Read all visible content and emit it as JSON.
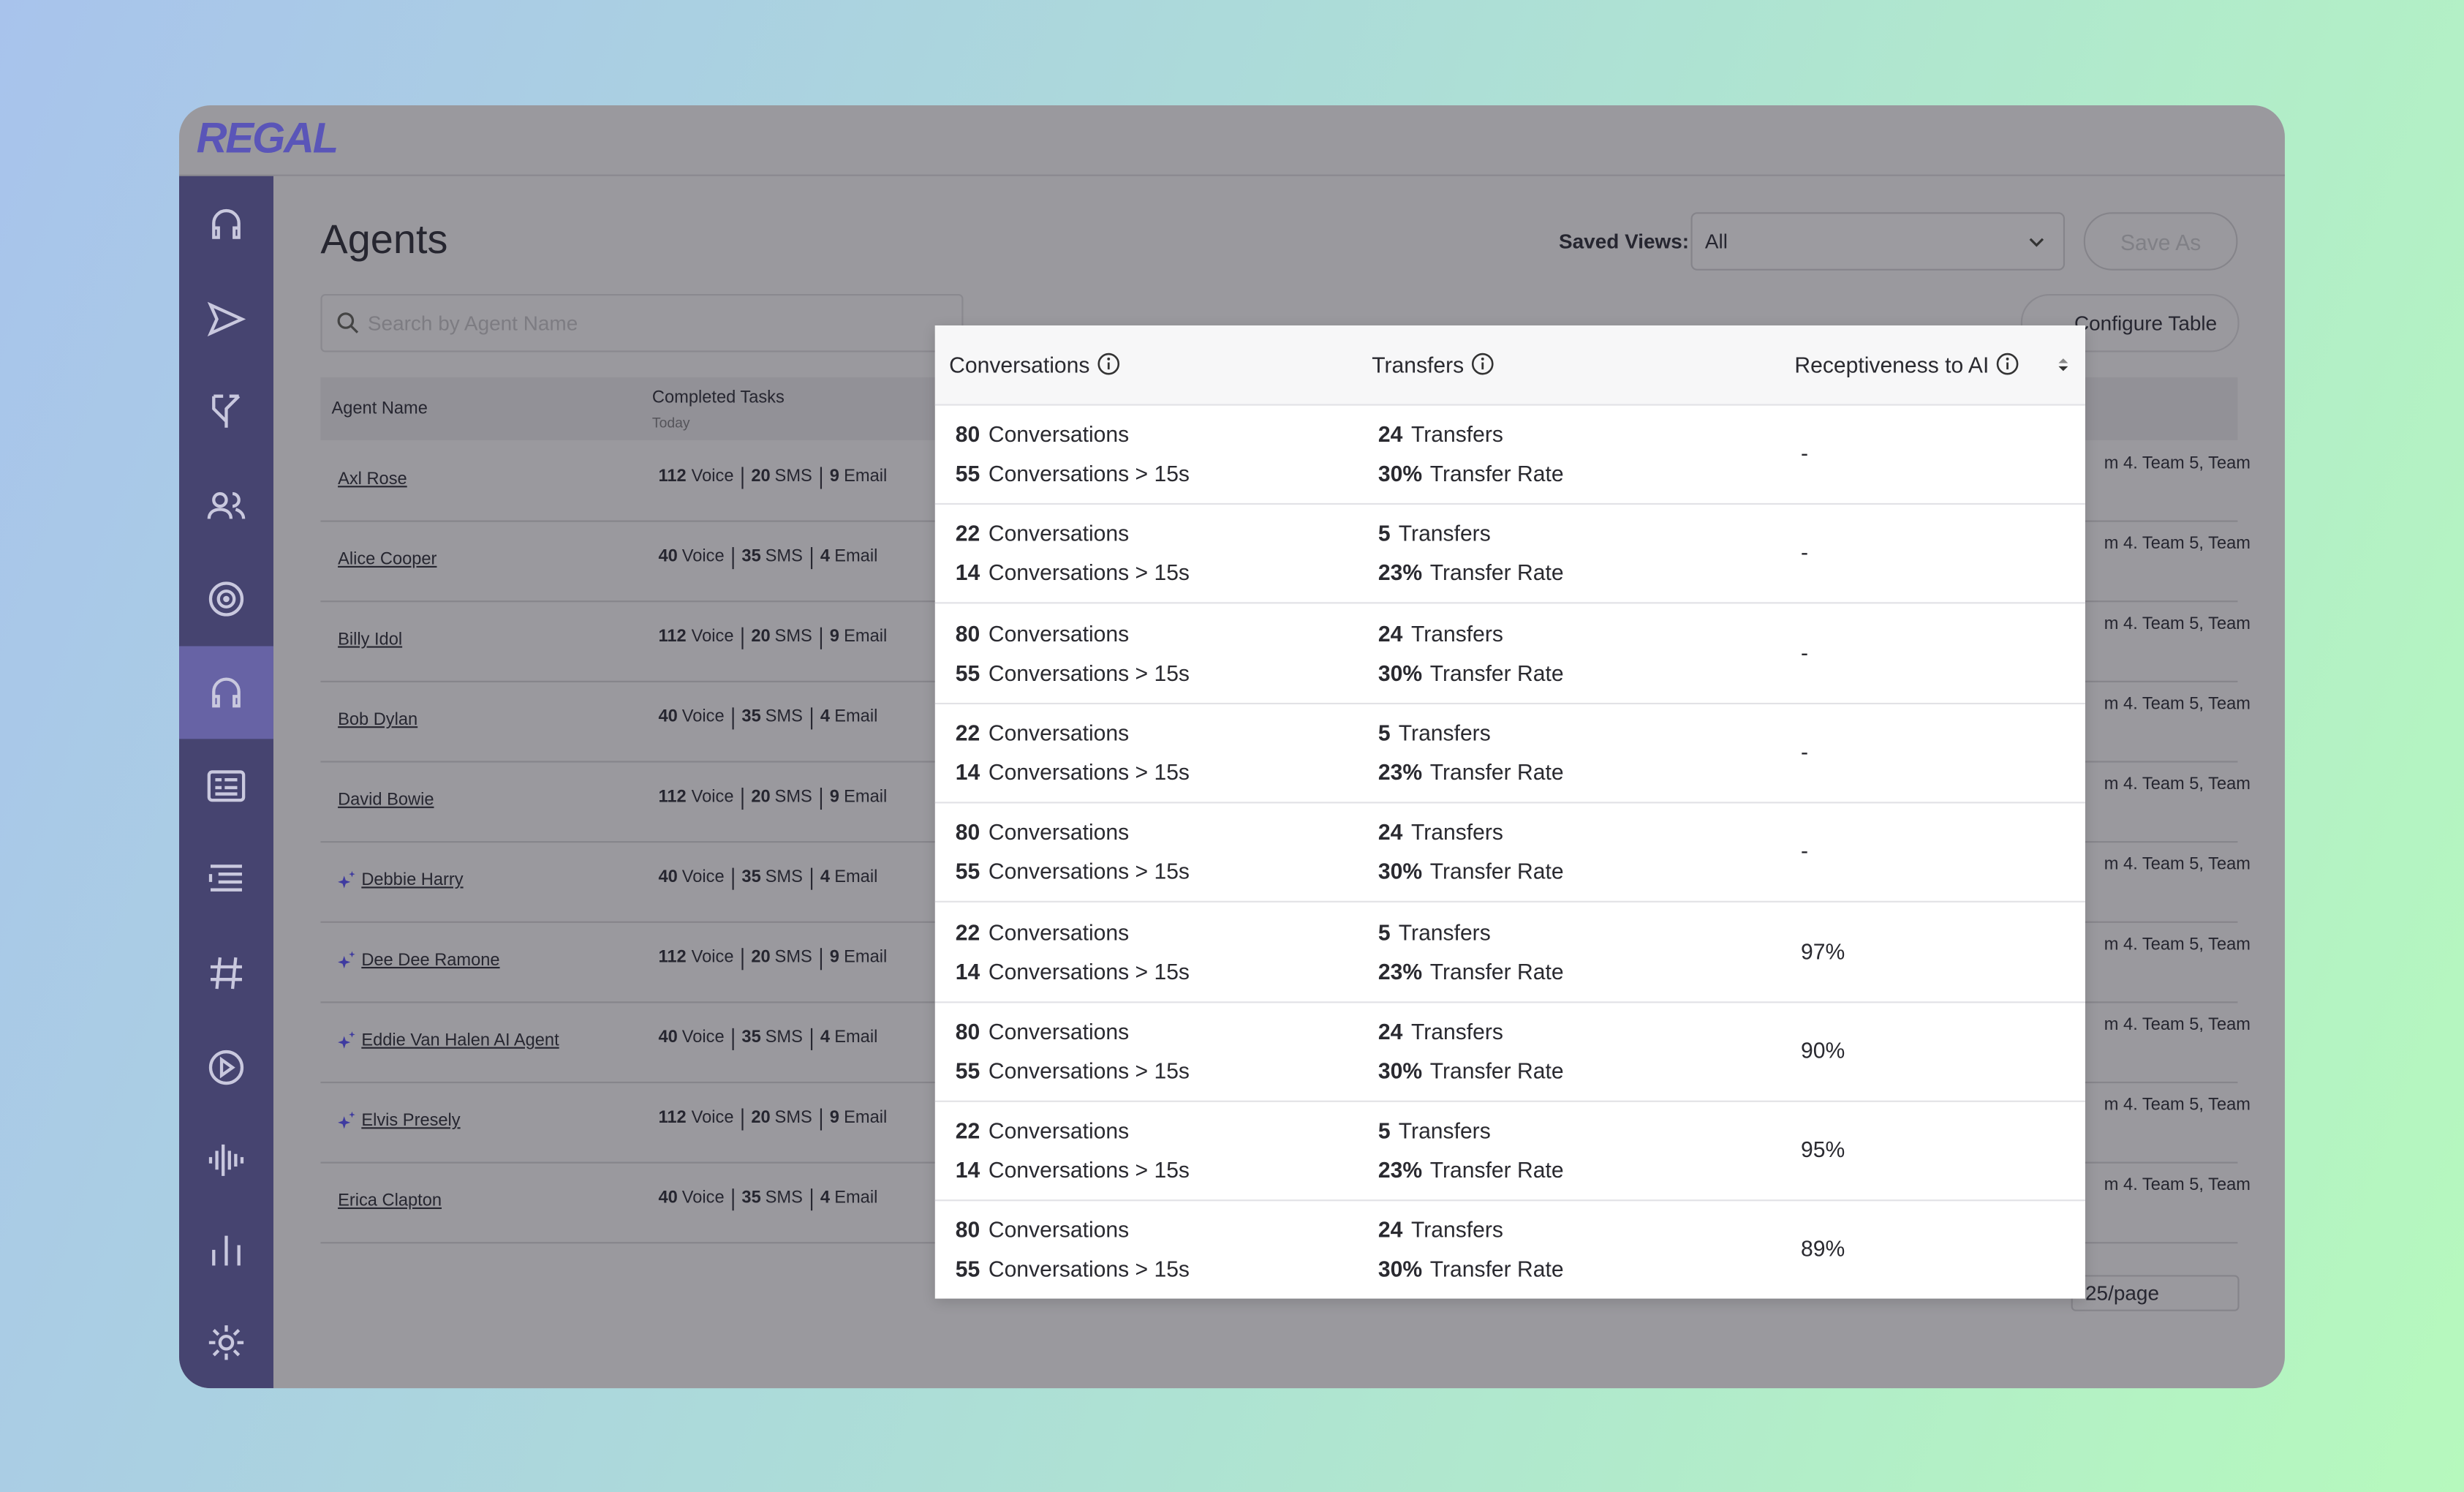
{
  "header": {
    "logo": "REGAL"
  },
  "page": {
    "title": "Agents",
    "saved_views_label": "Saved Views:",
    "saved_view": "All",
    "save_as": "Save As",
    "search_placeholder": "Search by Agent Name",
    "configure_table": "Configure Table",
    "pagination": "25/page"
  },
  "table": {
    "columns": {
      "agent_name": "Agent Name",
      "completed_tasks": "Completed Tasks",
      "completed_tasks_sub": "Today"
    },
    "task_labels": [
      "Voice",
      "SMS",
      "Email"
    ],
    "rows": [
      {
        "name": "Axl Rose",
        "ai": false,
        "tasks": [
          112,
          20,
          9
        ],
        "teams": "m 4. Team 5, Team"
      },
      {
        "name": "Alice Cooper",
        "ai": false,
        "tasks": [
          40,
          35,
          4
        ],
        "teams": "m 4. Team 5, Team"
      },
      {
        "name": "Billy Idol",
        "ai": false,
        "tasks": [
          112,
          20,
          9
        ],
        "teams": "m 4. Team 5, Team"
      },
      {
        "name": "Bob Dylan",
        "ai": false,
        "tasks": [
          40,
          35,
          4
        ],
        "teams": "m 4. Team 5, Team"
      },
      {
        "name": "David Bowie",
        "ai": false,
        "tasks": [
          112,
          20,
          9
        ],
        "teams": "m 4. Team 5, Team"
      },
      {
        "name": "Debbie Harry",
        "ai": true,
        "tasks": [
          40,
          35,
          4
        ],
        "teams": "m 4. Team 5, Team"
      },
      {
        "name": "Dee Dee Ramone",
        "ai": true,
        "tasks": [
          112,
          20,
          9
        ],
        "teams": "m 4. Team 5, Team"
      },
      {
        "name": "Eddie Van Halen AI Agent",
        "ai": true,
        "tasks": [
          40,
          35,
          4
        ],
        "teams": "m 4. Team 5, Team"
      },
      {
        "name": "Elvis Presely",
        "ai": true,
        "tasks": [
          112,
          20,
          9
        ],
        "teams": "m 4. Team 5, Team"
      },
      {
        "name": "Erica Clapton",
        "ai": false,
        "tasks": [
          40,
          35,
          4
        ],
        "teams": "m 4. Team 5, Team"
      }
    ]
  },
  "overlay": {
    "columns": [
      "Conversations",
      "Transfers",
      "Receptiveness to AI"
    ],
    "labels": {
      "conversations": "Conversations",
      "conversations_15s": "Conversations > 15s",
      "transfers": "Transfers",
      "transfer_rate": "Transfer Rate"
    },
    "rows": [
      {
        "conversations": 80,
        "conversations_15s": 55,
        "transfers": 24,
        "transfer_rate": "30%",
        "receptiveness": "-"
      },
      {
        "conversations": 22,
        "conversations_15s": 14,
        "transfers": 5,
        "transfer_rate": "23%",
        "receptiveness": "-"
      },
      {
        "conversations": 80,
        "conversations_15s": 55,
        "transfers": 24,
        "transfer_rate": "30%",
        "receptiveness": "-"
      },
      {
        "conversations": 22,
        "conversations_15s": 14,
        "transfers": 5,
        "transfer_rate": "23%",
        "receptiveness": "-"
      },
      {
        "conversations": 80,
        "conversations_15s": 55,
        "transfers": 24,
        "transfer_rate": "30%",
        "receptiveness": "-"
      },
      {
        "conversations": 22,
        "conversations_15s": 14,
        "transfers": 5,
        "transfer_rate": "23%",
        "receptiveness": "97%"
      },
      {
        "conversations": 80,
        "conversations_15s": 55,
        "transfers": 24,
        "transfer_rate": "30%",
        "receptiveness": "90%"
      },
      {
        "conversations": 22,
        "conversations_15s": 14,
        "transfers": 5,
        "transfer_rate": "23%",
        "receptiveness": "95%"
      },
      {
        "conversations": 80,
        "conversations_15s": 55,
        "transfers": 24,
        "transfer_rate": "30%",
        "receptiveness": "89%"
      }
    ]
  }
}
